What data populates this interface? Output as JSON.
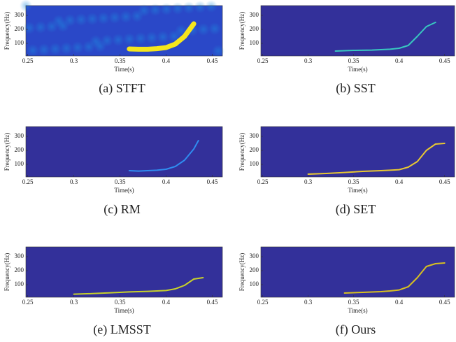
{
  "chart_data": [
    {
      "type": "spectrogram",
      "caption": "(a)  STFT",
      "xlabel": "Time(s)",
      "ylabel": "Frequency(Hz)",
      "color": "#f5e61c",
      "x": [
        0.36,
        0.37,
        0.38,
        0.39,
        0.4,
        0.41,
        0.42,
        0.43
      ],
      "values": [
        60,
        58,
        58,
        62,
        70,
        95,
        150,
        240
      ],
      "xlim": [
        0.248,
        0.461
      ],
      "ylim": [
        10,
        370
      ],
      "xticks": [
        0.25,
        0.3,
        0.35,
        0.4,
        0.45
      ],
      "yticks": [
        100,
        200,
        300
      ]
    },
    {
      "type": "spectrogram",
      "caption": "(b)  SST",
      "xlabel": "Time(s)",
      "ylabel": "Frequency(Hz)",
      "color": "#38c8c0",
      "x": [
        0.33,
        0.35,
        0.37,
        0.39,
        0.4,
        0.41,
        0.42,
        0.43,
        0.44
      ],
      "values": [
        45,
        50,
        52,
        58,
        65,
        85,
        150,
        220,
        250
      ],
      "xlim": [
        0.248,
        0.461
      ],
      "ylim": [
        10,
        370
      ],
      "xticks": [
        0.25,
        0.3,
        0.35,
        0.4,
        0.45
      ],
      "yticks": [
        100,
        200,
        300
      ]
    },
    {
      "type": "spectrogram",
      "caption": "(c)  RM",
      "xlabel": "Time(s)",
      "ylabel": "Frequency(Hz)",
      "color": "#2f8cf0",
      "x": [
        0.36,
        0.37,
        0.38,
        0.39,
        0.4,
        0.41,
        0.42,
        0.43,
        0.435
      ],
      "values": [
        55,
        52,
        55,
        58,
        65,
        85,
        130,
        210,
        270
      ],
      "xlim": [
        0.248,
        0.461
      ],
      "ylim": [
        10,
        370
      ],
      "xticks": [
        0.25,
        0.3,
        0.35,
        0.4,
        0.45
      ],
      "yticks": [
        100,
        200,
        300
      ]
    },
    {
      "type": "spectrogram",
      "caption": "(d)  SET",
      "xlabel": "Time(s)",
      "ylabel": "Frequency(Hz)",
      "color": "#e8c832",
      "x": [
        0.3,
        0.32,
        0.34,
        0.36,
        0.38,
        0.39,
        0.4,
        0.41,
        0.42,
        0.43,
        0.44,
        0.45
      ],
      "values": [
        30,
        35,
        42,
        50,
        55,
        58,
        62,
        80,
        120,
        200,
        245,
        250
      ],
      "xlim": [
        0.248,
        0.461
      ],
      "ylim": [
        10,
        370
      ],
      "xticks": [
        0.25,
        0.3,
        0.35,
        0.4,
        0.45
      ],
      "yticks": [
        100,
        200,
        300
      ]
    },
    {
      "type": "spectrogram",
      "caption": "(e)  LMSST",
      "xlabel": "Time(s)",
      "ylabel": "Frequency(Hz)",
      "color": "#c8d22a",
      "x": [
        0.3,
        0.32,
        0.34,
        0.36,
        0.38,
        0.39,
        0.4,
        0.41,
        0.42,
        0.43,
        0.44
      ],
      "values": [
        32,
        36,
        42,
        48,
        52,
        55,
        58,
        70,
        95,
        140,
        150
      ],
      "xlim": [
        0.248,
        0.461
      ],
      "ylim": [
        10,
        370
      ],
      "xticks": [
        0.25,
        0.3,
        0.35,
        0.4,
        0.45
      ],
      "yticks": [
        100,
        200,
        300
      ]
    },
    {
      "type": "spectrogram",
      "caption": "(f)  Ours",
      "xlabel": "Time(s)",
      "ylabel": "Frequency(Hz)",
      "color": "#d8c020",
      "x": [
        0.34,
        0.36,
        0.38,
        0.39,
        0.4,
        0.41,
        0.42,
        0.43,
        0.44,
        0.45
      ],
      "values": [
        40,
        45,
        50,
        55,
        62,
        85,
        150,
        230,
        250,
        255
      ],
      "xlim": [
        0.248,
        0.461
      ],
      "ylim": [
        10,
        370
      ],
      "xticks": [
        0.25,
        0.3,
        0.35,
        0.4,
        0.45
      ],
      "yticks": [
        100,
        200,
        300
      ]
    }
  ]
}
